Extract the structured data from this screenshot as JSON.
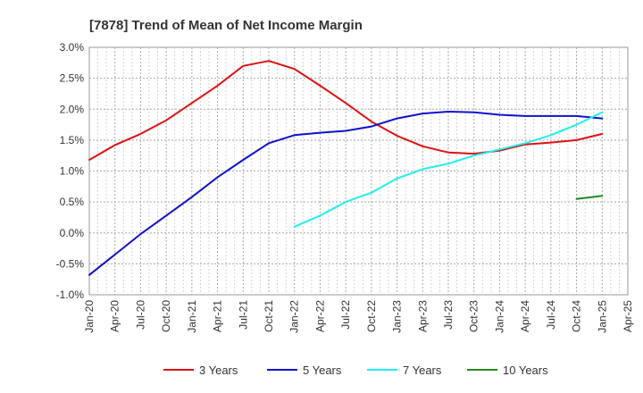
{
  "chart_data": {
    "type": "line",
    "title": "[7878]  Trend of Mean of Net Income Margin",
    "xlabel": "",
    "ylabel": "",
    "x_ticks": [
      "Jan-20",
      "Apr-20",
      "Jul-20",
      "Oct-20",
      "Jan-21",
      "Apr-21",
      "Jul-21",
      "Oct-21",
      "Jan-22",
      "Apr-22",
      "Jul-22",
      "Oct-22",
      "Jan-23",
      "Apr-23",
      "Jul-23",
      "Oct-23",
      "Jan-24",
      "Apr-24",
      "Jul-24",
      "Oct-24",
      "Jan-25",
      "Apr-25"
    ],
    "y_ticks": [
      "3.0%",
      "2.5%",
      "2.0%",
      "1.5%",
      "1.0%",
      "0.5%",
      "0.0%",
      "-0.5%",
      "-1.0%"
    ],
    "ylim": [
      -1.0,
      3.0
    ],
    "y_unit": "%",
    "grid": true,
    "legend_position": "bottom",
    "series": [
      {
        "name": "3 Years",
        "color": "#dd1111",
        "points": [
          [
            "Jan-20",
            1.18
          ],
          [
            "Apr-20",
            1.42
          ],
          [
            "Jul-20",
            1.6
          ],
          [
            "Oct-20",
            1.82
          ],
          [
            "Jan-21",
            2.1
          ],
          [
            "Apr-21",
            2.38
          ],
          [
            "Jul-21",
            2.7
          ],
          [
            "Oct-21",
            2.78
          ],
          [
            "Jan-22",
            2.65
          ],
          [
            "Apr-22",
            2.38
          ],
          [
            "Jul-22",
            2.1
          ],
          [
            "Oct-22",
            1.8
          ],
          [
            "Jan-23",
            1.57
          ],
          [
            "Apr-23",
            1.4
          ],
          [
            "Jul-23",
            1.3
          ],
          [
            "Oct-23",
            1.28
          ],
          [
            "Jan-24",
            1.33
          ],
          [
            "Apr-24",
            1.43
          ],
          [
            "Jul-24",
            1.46
          ],
          [
            "Oct-24",
            1.5
          ],
          [
            "Jan-25",
            1.6
          ]
        ]
      },
      {
        "name": "5 Years",
        "color": "#1111cc",
        "points": [
          [
            "Jan-20",
            -0.68
          ],
          [
            "Apr-20",
            -0.35
          ],
          [
            "Jul-20",
            -0.02
          ],
          [
            "Oct-20",
            0.28
          ],
          [
            "Jan-21",
            0.58
          ],
          [
            "Apr-21",
            0.9
          ],
          [
            "Jul-21",
            1.18
          ],
          [
            "Oct-21",
            1.45
          ],
          [
            "Jan-22",
            1.58
          ],
          [
            "Apr-22",
            1.62
          ],
          [
            "Jul-22",
            1.65
          ],
          [
            "Oct-22",
            1.72
          ],
          [
            "Jan-23",
            1.85
          ],
          [
            "Apr-23",
            1.93
          ],
          [
            "Jul-23",
            1.96
          ],
          [
            "Oct-23",
            1.95
          ],
          [
            "Jan-24",
            1.91
          ],
          [
            "Apr-24",
            1.89
          ],
          [
            "Jul-24",
            1.89
          ],
          [
            "Oct-24",
            1.89
          ],
          [
            "Jan-25",
            1.85
          ]
        ]
      },
      {
        "name": "7 Years",
        "color": "#22eeee",
        "points": [
          [
            "Jan-22",
            0.1
          ],
          [
            "Apr-22",
            0.28
          ],
          [
            "Jul-22",
            0.5
          ],
          [
            "Oct-22",
            0.65
          ],
          [
            "Jan-23",
            0.88
          ],
          [
            "Apr-23",
            1.03
          ],
          [
            "Jul-23",
            1.12
          ],
          [
            "Oct-23",
            1.25
          ],
          [
            "Jan-24",
            1.35
          ],
          [
            "Apr-24",
            1.45
          ],
          [
            "Jul-24",
            1.58
          ],
          [
            "Oct-24",
            1.75
          ],
          [
            "Jan-25",
            1.95
          ]
        ]
      },
      {
        "name": "10 Years",
        "color": "#228822",
        "points": [
          [
            "Oct-24",
            0.55
          ],
          [
            "Jan-25",
            0.6
          ]
        ]
      }
    ]
  }
}
